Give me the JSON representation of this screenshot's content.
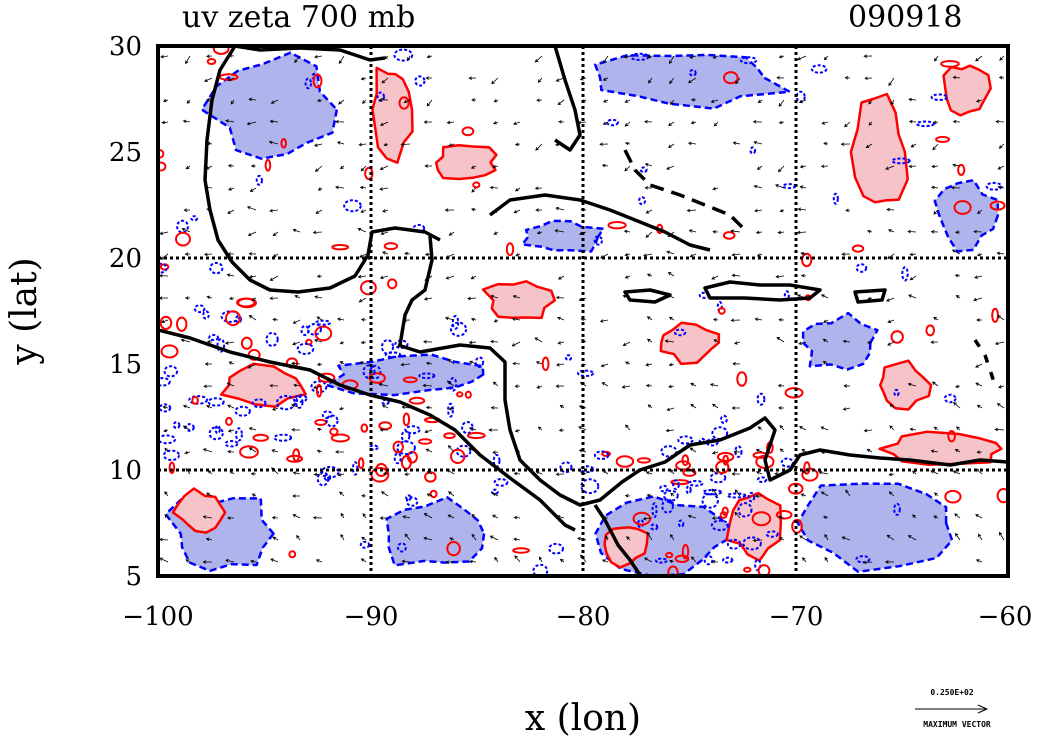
{
  "header": {
    "title": "uv zeta 700 mb",
    "date": "090918"
  },
  "axes": {
    "xlabel": "x (lon)",
    "ylabel": "y (lat)",
    "x_ticks": [
      "−100",
      "−90",
      "−80",
      "−70",
      "−60"
    ],
    "y_ticks": [
      "30",
      "25",
      "20",
      "15",
      "10",
      "5"
    ]
  },
  "legend": {
    "vector_value": "0.250E+02",
    "vector_label": "MAXIMUM VECTOR"
  },
  "colors": {
    "positive_fill": "#f6c4c8",
    "positive_line": "#ff0000",
    "negative_fill": "#b0b4ec",
    "negative_line": "#0000ff",
    "coast": "#000000"
  },
  "chart_data": {
    "type": "contour-map",
    "field": "relative vorticity (zeta) with wind vectors (uv)",
    "level": "700 mb",
    "date": "090918",
    "xlim": [
      -100,
      -60
    ],
    "ylim": [
      5,
      30
    ],
    "grid_lines_lon": [
      -90,
      -80,
      -70
    ],
    "grid_lines_lat": [
      20,
      10
    ],
    "positive_regions": [
      {
        "lon": -89,
        "lat": 27,
        "rx": 1.0,
        "ry": 2.2
      },
      {
        "lon": -85.5,
        "lat": 24.5,
        "rx": 1.5,
        "ry": 0.8
      },
      {
        "lon": -66,
        "lat": 25,
        "rx": 1.2,
        "ry": 2.5
      },
      {
        "lon": -62,
        "lat": 28,
        "rx": 1.0,
        "ry": 1.2
      },
      {
        "lon": -83,
        "lat": 18,
        "rx": 1.6,
        "ry": 1.0
      },
      {
        "lon": -95,
        "lat": 14,
        "rx": 2.0,
        "ry": 0.9
      },
      {
        "lon": -98,
        "lat": 8,
        "rx": 1.2,
        "ry": 1.0
      },
      {
        "lon": -75,
        "lat": 16,
        "rx": 1.5,
        "ry": 0.9
      },
      {
        "lon": -65,
        "lat": 14,
        "rx": 1.2,
        "ry": 1.0
      },
      {
        "lon": -63,
        "lat": 11,
        "rx": 3.0,
        "ry": 0.7
      },
      {
        "lon": -78,
        "lat": 6.5,
        "rx": 1.0,
        "ry": 1.0
      },
      {
        "lon": -72,
        "lat": 7.5,
        "rx": 1.2,
        "ry": 1.6
      }
    ],
    "negative_regions": [
      {
        "lon": -94.5,
        "lat": 27,
        "rx": 3.0,
        "ry": 2.5
      },
      {
        "lon": -97,
        "lat": 7,
        "rx": 2.5,
        "ry": 1.8
      },
      {
        "lon": -87,
        "lat": 7,
        "rx": 2.5,
        "ry": 1.6
      },
      {
        "lon": -75,
        "lat": 28.5,
        "rx": 4.5,
        "ry": 1.3
      },
      {
        "lon": -66,
        "lat": 7.5,
        "rx": 4.0,
        "ry": 2.0
      },
      {
        "lon": -76,
        "lat": 7,
        "rx": 3.0,
        "ry": 1.8
      },
      {
        "lon": -68,
        "lat": 16,
        "rx": 1.8,
        "ry": 1.2
      },
      {
        "lon": -62,
        "lat": 22,
        "rx": 1.5,
        "ry": 1.5
      },
      {
        "lon": -88,
        "lat": 14.5,
        "rx": 4.0,
        "ry": 1.0
      },
      {
        "lon": -81,
        "lat": 21,
        "rx": 2.0,
        "ry": 0.8
      }
    ]
  }
}
